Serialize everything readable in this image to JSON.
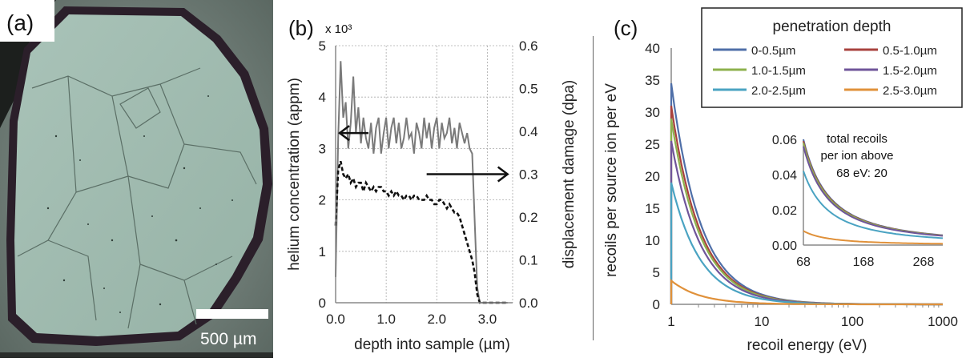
{
  "panel_a": {
    "label": "(a)",
    "scale_bar_label": "500 µm"
  },
  "panel_b": {
    "label": "(b)",
    "multiplier": "x 10³"
  },
  "panel_c": {
    "label": "(c)",
    "legend_title": "penetration depth",
    "inset_text_1": "total recoils",
    "inset_text_2": "per ion above",
    "inset_text_3": "68 eV: 20"
  },
  "chart_data": [
    {
      "id": "b",
      "type": "line",
      "xlabel": "depth into sample (µm)",
      "ylabel": "helium concentration (appm)",
      "y2label": "displacement damage (dpa)",
      "xlim": [
        0,
        3.5
      ],
      "ylim": [
        0,
        5
      ],
      "y2lim": [
        0,
        0.6
      ],
      "x_ticks": [
        "0.0",
        "1.0",
        "2.0",
        "3.0"
      ],
      "y_ticks": [
        "0",
        "1",
        "2",
        "3",
        "4",
        "5"
      ],
      "y2_ticks": [
        "0.0",
        "0.1",
        "0.2",
        "0.3",
        "0.4",
        "0.5",
        "0.6"
      ],
      "series": [
        {
          "axis": "left",
          "style": "solid",
          "color": "#7a7a7a",
          "x": [
            0.0,
            0.05,
            0.1,
            0.15,
            0.2,
            0.25,
            0.3,
            0.35,
            0.4,
            0.45,
            0.5,
            0.55,
            0.6,
            0.65,
            0.7,
            0.75,
            0.8,
            0.85,
            0.9,
            0.95,
            1.0,
            1.05,
            1.1,
            1.15,
            1.2,
            1.25,
            1.3,
            1.35,
            1.4,
            1.45,
            1.5,
            1.55,
            1.6,
            1.65,
            1.7,
            1.75,
            1.8,
            1.85,
            1.9,
            1.95,
            2.0,
            2.05,
            2.1,
            2.15,
            2.2,
            2.25,
            2.3,
            2.35,
            2.4,
            2.45,
            2.5,
            2.55,
            2.6,
            2.65,
            2.7,
            2.75,
            2.8,
            2.85,
            2.9,
            3.0,
            3.2,
            3.4
          ],
          "y": [
            0.5,
            3.2,
            4.7,
            3.6,
            3.9,
            3.0,
            3.5,
            4.4,
            3.3,
            3.8,
            3.1,
            3.6,
            3.2,
            3.0,
            3.5,
            2.9,
            3.4,
            3.6,
            2.9,
            3.3,
            3.6,
            3.0,
            3.4,
            3.6,
            3.1,
            3.5,
            3.0,
            3.2,
            3.6,
            3.2,
            3.3,
            2.9,
            3.5,
            3.3,
            3.0,
            3.6,
            3.2,
            3.5,
            3.0,
            3.4,
            3.6,
            3.0,
            3.5,
            3.2,
            3.3,
            3.6,
            3.1,
            3.4,
            3.0,
            3.5,
            3.3,
            3.1,
            3.3,
            3.0,
            2.9,
            1.6,
            0.3,
            0.0,
            0.0,
            0.0,
            0.0,
            0.0
          ]
        },
        {
          "axis": "right",
          "style": "dashed",
          "color": "#111111",
          "x": [
            0.0,
            0.05,
            0.1,
            0.15,
            0.2,
            0.25,
            0.3,
            0.35,
            0.4,
            0.45,
            0.5,
            0.55,
            0.6,
            0.65,
            0.7,
            0.75,
            0.8,
            0.85,
            0.9,
            0.95,
            1.0,
            1.05,
            1.1,
            1.15,
            1.2,
            1.25,
            1.3,
            1.35,
            1.4,
            1.45,
            1.5,
            1.55,
            1.6,
            1.65,
            1.7,
            1.75,
            1.8,
            1.85,
            1.9,
            1.95,
            2.0,
            2.05,
            2.1,
            2.15,
            2.2,
            2.25,
            2.3,
            2.35,
            2.4,
            2.45,
            2.5,
            2.55,
            2.6,
            2.65,
            2.7,
            2.75,
            2.8,
            2.85,
            2.9,
            3.0,
            3.2,
            3.4
          ],
          "y": [
            0.18,
            0.31,
            0.33,
            0.3,
            0.29,
            0.3,
            0.28,
            0.29,
            0.27,
            0.28,
            0.28,
            0.26,
            0.28,
            0.27,
            0.26,
            0.27,
            0.26,
            0.27,
            0.27,
            0.26,
            0.26,
            0.25,
            0.26,
            0.25,
            0.26,
            0.25,
            0.25,
            0.24,
            0.25,
            0.25,
            0.24,
            0.25,
            0.25,
            0.24,
            0.24,
            0.24,
            0.25,
            0.24,
            0.24,
            0.23,
            0.23,
            0.24,
            0.24,
            0.23,
            0.22,
            0.23,
            0.22,
            0.21,
            0.21,
            0.2,
            0.18,
            0.16,
            0.14,
            0.12,
            0.1,
            0.07,
            0.02,
            0.0,
            0.0,
            0.0,
            0.0,
            0.0
          ]
        }
      ],
      "annotations": [
        {
          "type": "arrow",
          "direction": "left",
          "points_to_axis": "left",
          "x": [
            0.65,
            0.08
          ],
          "y": [
            3.3,
            3.3
          ]
        },
        {
          "type": "arrow",
          "direction": "right",
          "points_to_axis": "right",
          "x": [
            1.8,
            3.4
          ],
          "y": [
            2.5,
            2.5
          ]
        }
      ]
    },
    {
      "id": "c",
      "type": "line",
      "xlabel": "recoil energy (eV)",
      "ylabel": "recoils per source ion per eV",
      "x_scale": "log",
      "xlim": [
        1,
        1000
      ],
      "ylim": [
        0,
        40
      ],
      "x_ticks": [
        "1",
        "10",
        "100",
        "1000"
      ],
      "y_ticks": [
        "0",
        "5",
        "10",
        "15",
        "20",
        "25",
        "30",
        "35",
        "40"
      ],
      "legend_position": "top-right",
      "series": [
        {
          "name": "0-0.5µm",
          "color": "#4f6fa8",
          "peak": 34.5
        },
        {
          "name": "0.5-1.0µm",
          "color": "#a8423e",
          "peak": 31.0
        },
        {
          "name": "1.0-1.5µm",
          "color": "#8db14d",
          "peak": 29.0
        },
        {
          "name": "1.5-2.0µm",
          "color": "#6f559a",
          "peak": 25.5
        },
        {
          "name": "2.0-2.5µm",
          "color": "#4aa3c2",
          "peak": 19.0
        },
        {
          "name": "2.5-3.0µm",
          "color": "#e0913a",
          "peak": 3.7
        }
      ],
      "inset": {
        "type": "line",
        "xlim": [
          68,
          300
        ],
        "ylim": [
          0,
          0.06
        ],
        "x_ticks": [
          "68",
          "168",
          "268"
        ],
        "y_ticks": [
          "0.00",
          "0.02",
          "0.04",
          "0.06"
        ],
        "series_peaks": [
          0.06,
          0.059,
          0.058,
          0.056,
          0.042,
          0.008
        ]
      }
    }
  ]
}
